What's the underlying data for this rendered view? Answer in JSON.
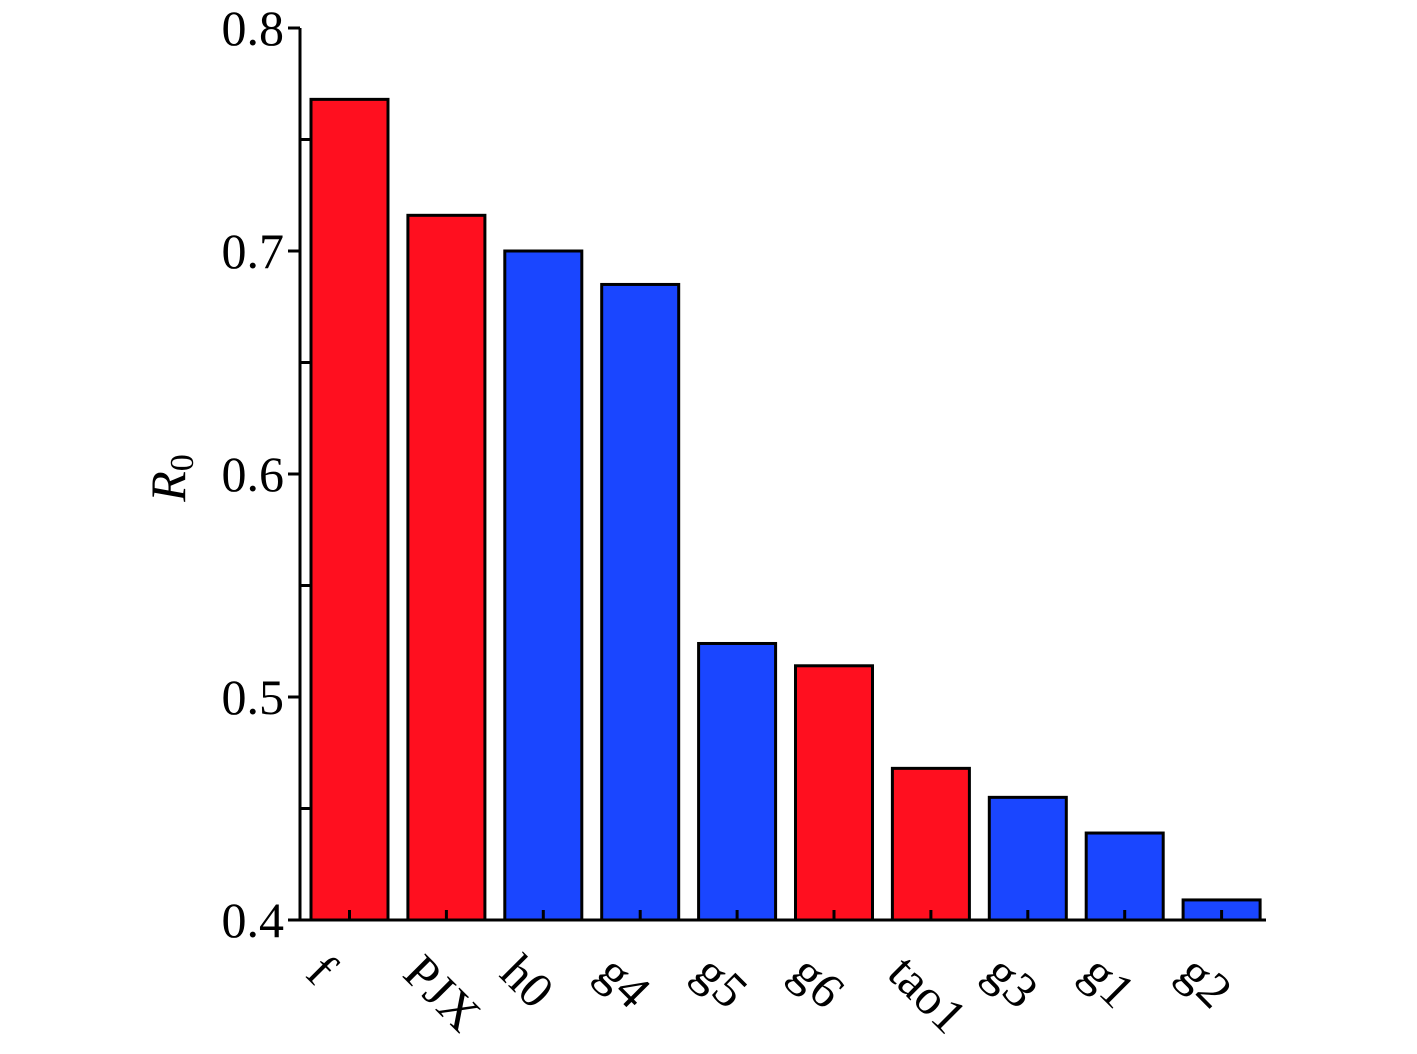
{
  "chart_data": {
    "type": "bar",
    "title": "",
    "xlabel": "",
    "ylabel": "R",
    "ylabel_subscript": "0",
    "ylim": [
      0.4,
      0.8
    ],
    "yticks_major": [
      "0.4",
      "0.5",
      "0.6",
      "0.7",
      "0.8"
    ],
    "categories": [
      "f",
      "PJX",
      "h0",
      "g4",
      "g5",
      "g6",
      "tao1",
      "g3",
      "g1",
      "g2"
    ],
    "values": [
      0.768,
      0.716,
      0.7,
      0.685,
      0.524,
      0.514,
      0.468,
      0.455,
      0.439,
      0.409
    ],
    "bar_colors": [
      "#ff0f1f",
      "#ff0f1f",
      "#1a46ff",
      "#1a46ff",
      "#1a46ff",
      "#ff0f1f",
      "#ff0f1f",
      "#1a46ff",
      "#1a46ff",
      "#1a46ff"
    ],
    "grid": false,
    "legend": "none"
  }
}
